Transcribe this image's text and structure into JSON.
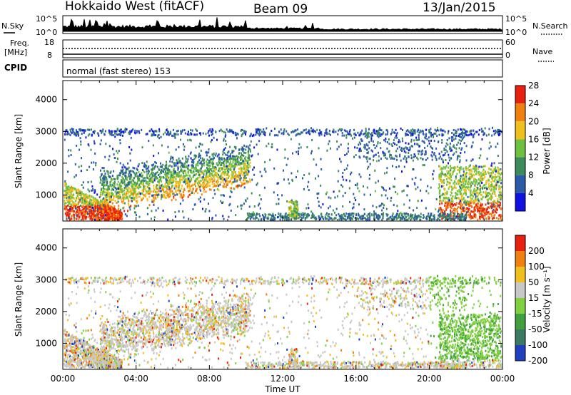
{
  "header": {
    "site": "Hokkaido West (fitACF)",
    "beam": "Beam 09",
    "date": "13/Jan/2015"
  },
  "noise_panel": {
    "left_label": "N.Sky",
    "right_label": "N.Search",
    "ticks_left": [
      "10^5",
      "10^0"
    ],
    "ticks_right": [
      "10^5",
      "10^0"
    ]
  },
  "freq_panel": {
    "left_label_line1": "Freq.",
    "left_label_line2": "[MHz]",
    "right_label": "Nave",
    "ticks_left": [
      "18",
      "8"
    ],
    "ticks_right": [
      "60",
      "0"
    ]
  },
  "cpid_panel": {
    "label": "CPID",
    "text": "normal (fast stereo) 153"
  },
  "chart_data": [
    {
      "type": "heatmap",
      "name": "power",
      "ylabel": "Slant Range [km]",
      "yticks": [
        1000,
        2000,
        3000,
        4000
      ],
      "ylim": [
        180,
        4600
      ],
      "xlim": [
        0,
        24
      ],
      "colorbar_label": "Power [dB]",
      "colorbar_ticks": [
        "4",
        "8",
        "12",
        "16",
        "20",
        "24",
        "28"
      ],
      "colors": [
        "#1010e0",
        "#2a5aa8",
        "#3d8a5a",
        "#70c040",
        "#f0c020",
        "#f08010",
        "#e82010"
      ]
    },
    {
      "type": "heatmap",
      "name": "velocity",
      "ylabel": "Slant Range [km]",
      "yticks": [
        1000,
        2000,
        3000,
        4000
      ],
      "ylim": [
        180,
        4600
      ],
      "xlim": [
        0,
        24
      ],
      "xlabel": "Time UT",
      "xticks": [
        "00:00",
        "04:00",
        "08:00",
        "12:00",
        "16:00",
        "20:00",
        "00:00"
      ],
      "colorbar_label": "Velocity [m s⁻¹]",
      "colorbar_ticks": [
        "200",
        "100",
        "50",
        "15",
        "-15",
        "-50",
        "-100",
        "-200"
      ],
      "colors": [
        "#2040c0",
        "#3a7a60",
        "#40a040",
        "#80d040",
        "#c8c8c8",
        "#f0c020",
        "#f08010",
        "#e82010"
      ]
    }
  ]
}
